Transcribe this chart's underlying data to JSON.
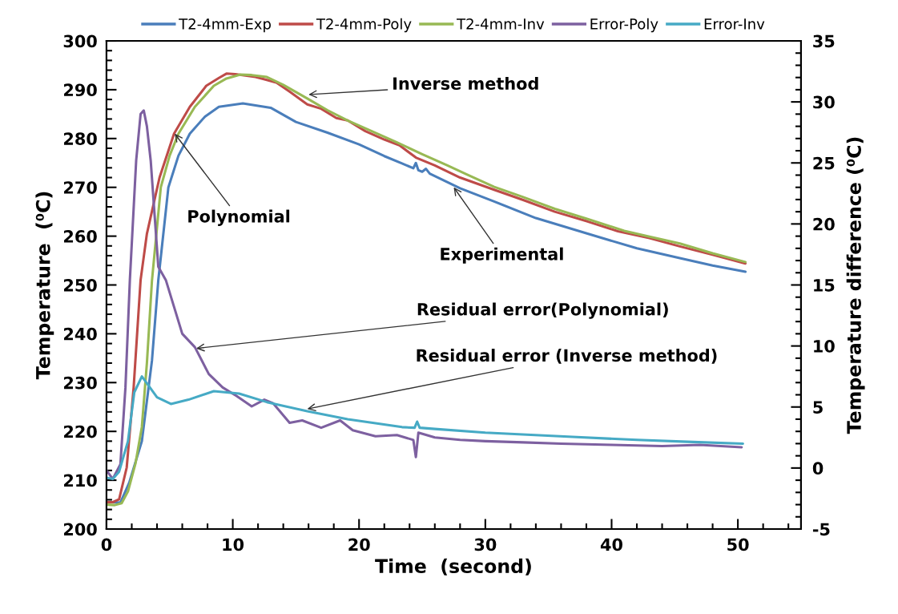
{
  "chart_data": {
    "type": "line",
    "xlabel": "Time  (second)",
    "ylabel": "Temperature  (⁰C)",
    "y2label": "Temperature difference (⁰C)",
    "xlim": [
      0,
      55
    ],
    "xticks": [
      0,
      {
        "value": 2,
        "label": null
      },
      {
        "value": 4,
        "label": null
      },
      {
        "value": 6,
        "label": null
      },
      {
        "value": 8,
        "label": null
      },
      10,
      {
        "value": 12,
        "label": null
      },
      {
        "value": 14,
        "label": null
      },
      {
        "value": 16,
        "label": null
      },
      {
        "value": 18,
        "label": null
      },
      20,
      {
        "value": 22,
        "label": null
      },
      {
        "value": 24,
        "label": null
      },
      {
        "value": 26,
        "label": null
      },
      {
        "value": 28,
        "label": null
      },
      30,
      {
        "value": 32,
        "label": null
      },
      {
        "value": 34,
        "label": null
      },
      {
        "value": 36,
        "label": null
      },
      {
        "value": 38,
        "label": null
      },
      40,
      {
        "value": 42,
        "label": null
      },
      {
        "value": 44,
        "label": null
      },
      {
        "value": 46,
        "label": null
      },
      {
        "value": 48,
        "label": null
      },
      50,
      {
        "value": 52,
        "label": null
      },
      {
        "value": 54,
        "label": null
      }
    ],
    "ylim": [
      200,
      300
    ],
    "yticks": [
      200,
      {
        "value": 202,
        "label": null
      },
      {
        "value": 204,
        "label": null
      },
      {
        "value": 206,
        "label": null
      },
      {
        "value": 208,
        "label": null
      },
      210,
      {
        "value": 212,
        "label": null
      },
      {
        "value": 214,
        "label": null
      },
      {
        "value": 216,
        "label": null
      },
      {
        "value": 218,
        "label": null
      },
      220,
      {
        "value": 222,
        "label": null
      },
      {
        "value": 224,
        "label": null
      },
      {
        "value": 226,
        "label": null
      },
      {
        "value": 228,
        "label": null
      },
      230,
      {
        "value": 232,
        "label": null
      },
      {
        "value": 234,
        "label": null
      },
      {
        "value": 236,
        "label": null
      },
      {
        "value": 238,
        "label": null
      },
      240,
      {
        "value": 242,
        "label": null
      },
      {
        "value": 244,
        "label": null
      },
      {
        "value": 246,
        "label": null
      },
      {
        "value": 248,
        "label": null
      },
      250,
      {
        "value": 252,
        "label": null
      },
      {
        "value": 254,
        "label": null
      },
      {
        "value": 256,
        "label": null
      },
      {
        "value": 258,
        "label": null
      },
      260,
      {
        "value": 262,
        "label": null
      },
      {
        "value": 264,
        "label": null
      },
      {
        "value": 266,
        "label": null
      },
      {
        "value": 268,
        "label": null
      },
      270,
      {
        "value": 272,
        "label": null
      },
      {
        "value": 274,
        "label": null
      },
      {
        "value": 276,
        "label": null
      },
      {
        "value": 278,
        "label": null
      },
      280,
      {
        "value": 282,
        "label": null
      },
      {
        "value": 284,
        "label": null
      },
      {
        "value": 286,
        "label": null
      },
      {
        "value": 288,
        "label": null
      },
      290,
      {
        "value": 292,
        "label": null
      },
      {
        "value": 294,
        "label": null
      },
      {
        "value": 296,
        "label": null
      },
      {
        "value": 298,
        "label": null
      },
      300
    ],
    "y2lim": [
      -5,
      35
    ],
    "y2ticks": [
      -5,
      {
        "value": -4,
        "label": null
      },
      {
        "value": -3,
        "label": null
      },
      {
        "value": -2,
        "label": null
      },
      {
        "value": -1,
        "label": null
      },
      0,
      {
        "value": 1,
        "label": null
      },
      {
        "value": 2,
        "label": null
      },
      {
        "value": 3,
        "label": null
      },
      {
        "value": 4,
        "label": null
      },
      5,
      {
        "value": 6,
        "label": null
      },
      {
        "value": 7,
        "label": null
      },
      {
        "value": 8,
        "label": null
      },
      {
        "value": 9,
        "label": null
      },
      10,
      {
        "value": 11,
        "label": null
      },
      {
        "value": 12,
        "label": null
      },
      {
        "value": 13,
        "label": null
      },
      {
        "value": 14,
        "label": null
      },
      15,
      {
        "value": 16,
        "label": null
      },
      {
        "value": 17,
        "label": null
      },
      {
        "value": 18,
        "label": null
      },
      {
        "value": 19,
        "label": null
      },
      20,
      {
        "value": 21,
        "label": null
      },
      {
        "value": 22,
        "label": null
      },
      {
        "value": 23,
        "label": null
      },
      {
        "value": 24,
        "label": null
      },
      25,
      {
        "value": 26,
        "label": null
      },
      {
        "value": 27,
        "label": null
      },
      {
        "value": 28,
        "label": null
      },
      {
        "value": 29,
        "label": null
      },
      30,
      {
        "value": 31,
        "label": null
      },
      {
        "value": 32,
        "label": null
      },
      {
        "value": 33,
        "label": null
      },
      {
        "value": 34,
        "label": null
      },
      35
    ],
    "grid": false,
    "legend": "top",
    "marker": "none",
    "line_style": "solid",
    "series": [
      {
        "name": "T2-4mm-Exp",
        "color": "#4a7ebb",
        "x": [
          0,
          0.5,
          1.1,
          1.8,
          2.8,
          3.6,
          4.1,
          4.9,
          5.7,
          6.6,
          7.8,
          8.9,
          10.8,
          13,
          15,
          17.5,
          20,
          22,
          23.4,
          24.3,
          24.5,
          24.7,
          25,
          25.3,
          25.6,
          28,
          30.7,
          34,
          38.1,
          42,
          45.4,
          48,
          50.6
        ],
        "values": [
          205.5,
          205.5,
          205.4,
          209.5,
          218,
          234.5,
          250.9,
          270,
          276.5,
          281,
          284.5,
          286.5,
          287.2,
          286.3,
          283.4,
          281.2,
          278.8,
          276.4,
          274.9,
          273.9,
          275,
          273.5,
          273.2,
          273.8,
          272.8,
          269.8,
          267.1,
          263.7,
          260.5,
          257.5,
          255.5,
          254,
          252.7
        ]
      },
      {
        "name": "T2-4mm-Poly",
        "color": "#be4b48",
        "x": [
          0,
          0.5,
          1,
          1.6,
          2.15,
          2.7,
          3.2,
          4.2,
          5.35,
          6.6,
          7.9,
          8.9,
          9.5,
          10.2,
          11,
          11.8,
          12.7,
          13.5,
          14.5,
          15.9,
          17,
          18.2,
          19.1,
          20.5,
          22,
          23.2,
          24.5,
          26,
          28,
          30.7,
          33,
          35.5,
          38.1,
          40.5,
          43,
          45.4,
          48,
          50.6
        ],
        "values": [
          205.5,
          205.5,
          206.1,
          212.6,
          229,
          251,
          260.5,
          272,
          281,
          286.5,
          290.8,
          292.4,
          293.3,
          293.2,
          292.9,
          292.6,
          292,
          291.4,
          289.6,
          287,
          286.1,
          284.2,
          283.7,
          281.5,
          279.8,
          278.6,
          276.1,
          274.5,
          272,
          269.5,
          267.4,
          265,
          263,
          261,
          259.6,
          257.9,
          256.2,
          254.4
        ]
      },
      {
        "name": "T2-4mm-Inv",
        "color": "#98b954",
        "x": [
          0,
          0.65,
          1.2,
          1.7,
          2.3,
          2.8,
          3.2,
          3.6,
          4.3,
          5,
          5.7,
          7,
          8.5,
          9.5,
          10.6,
          11.5,
          12.7,
          14,
          15.9,
          17.5,
          19.1,
          21,
          23,
          25,
          27,
          28.5,
          30.7,
          33,
          35.5,
          38.1,
          41,
          43,
          45.4,
          48,
          50.6
        ],
        "values": [
          205,
          204.9,
          205.3,
          207.7,
          213.5,
          220.9,
          234,
          250.9,
          270,
          276.5,
          281,
          286.5,
          290.8,
          292.3,
          293.1,
          293,
          292.6,
          291,
          288.2,
          285.8,
          283.7,
          281.5,
          279.2,
          276.8,
          274.5,
          272.7,
          270.1,
          268,
          265.6,
          263.5,
          261.1,
          259.9,
          258.5,
          256.5,
          254.7
        ]
      },
      {
        "name": "Error-Poly",
        "color": "#7d60a0",
        "axis": "y2",
        "x": [
          0,
          0.5,
          1.1,
          1.5,
          1.85,
          2.35,
          2.7,
          2.95,
          3.2,
          3.5,
          4.1,
          4.7,
          5.35,
          6,
          7,
          8.1,
          9.2,
          10.3,
          11.5,
          12.5,
          13.2,
          14.5,
          15.5,
          17,
          18.5,
          19.5,
          21.3,
          23,
          24.3,
          24.5,
          24.7,
          26,
          28,
          30,
          33,
          36,
          40,
          44,
          47,
          50.3
        ],
        "values": [
          -0.2,
          -0.9,
          0.3,
          6.6,
          15.4,
          25.2,
          29,
          29.3,
          28,
          25.2,
          16.5,
          15.4,
          13.2,
          11,
          9.9,
          7.7,
          6.6,
          5.9,
          5.05,
          5.6,
          5.3,
          3.7,
          3.9,
          3.3,
          3.9,
          3.1,
          2.6,
          2.7,
          2.3,
          0.9,
          2.9,
          2.5,
          2.3,
          2.2,
          2.1,
          2,
          1.9,
          1.8,
          1.9,
          1.7
        ]
      },
      {
        "name": "Error-Inv",
        "color": "#46aac5",
        "axis": "y2",
        "x": [
          0,
          0.5,
          1,
          1.7,
          2.2,
          2.8,
          3.3,
          4,
          5.1,
          6.5,
          8.5,
          10.5,
          12.7,
          15.9,
          19.1,
          23.4,
          24.4,
          24.6,
          24.8,
          26,
          30,
          36.9,
          42,
          46,
          50.4
        ],
        "values": [
          -0.8,
          -0.9,
          -0.3,
          2.2,
          6.2,
          7.5,
          6.8,
          5.8,
          5.25,
          5.6,
          6.3,
          6.1,
          5.4,
          4.65,
          4,
          3.35,
          3.3,
          3.8,
          3.3,
          3.2,
          2.9,
          2.55,
          2.3,
          2.15,
          2
        ]
      }
    ],
    "annotations": [
      {
        "text": "Inverse method",
        "x": 16,
        "y": 289
      },
      {
        "text": "Polynomial",
        "x": 5.4,
        "y": 281
      },
      {
        "text": "Experimental",
        "x": 27.5,
        "y": 270
      },
      {
        "text": "Residual error(Polynomial)",
        "x": 7.1,
        "y": 237
      },
      {
        "text": "Residual error (Inverse method)",
        "x": 15.9,
        "y": 224.6
      }
    ]
  }
}
